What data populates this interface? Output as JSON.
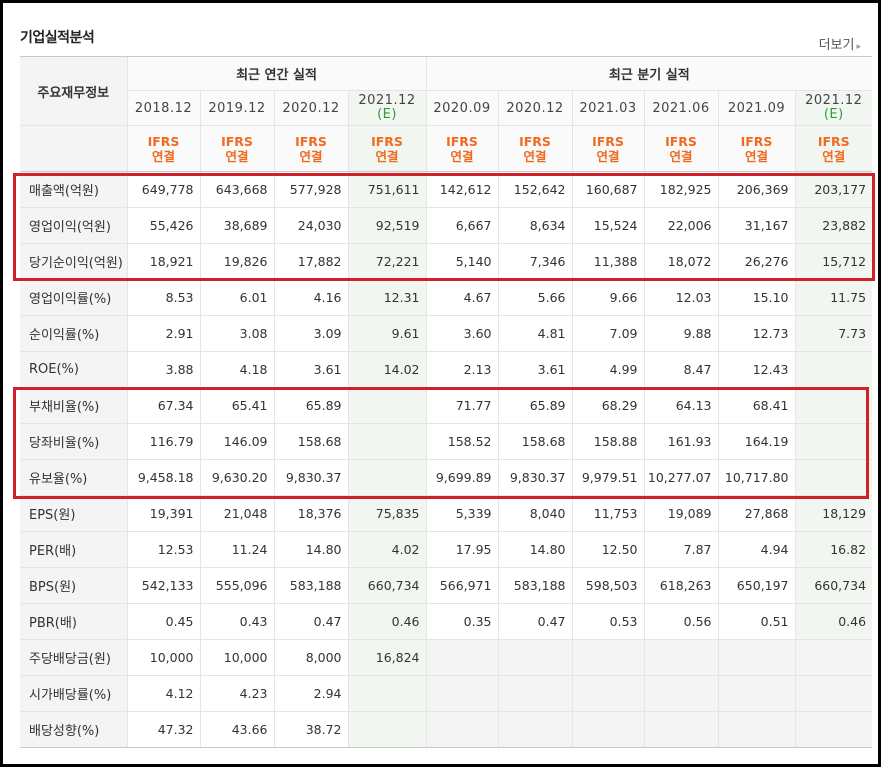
{
  "title": "기업실적분석",
  "more": {
    "label": "더보기",
    "arrow": "▸"
  },
  "header": {
    "label_column": "주요재무정보",
    "groups": {
      "annual": "최근 연간 실적",
      "quarterly": "최근 분기 실적"
    },
    "periods": [
      {
        "date": "2018.12",
        "est": ""
      },
      {
        "date": "2019.12",
        "est": ""
      },
      {
        "date": "2020.12",
        "est": ""
      },
      {
        "date": "2021.12",
        "est": "(E)"
      },
      {
        "date": "2020.09",
        "est": ""
      },
      {
        "date": "2020.12",
        "est": ""
      },
      {
        "date": "2021.03",
        "est": ""
      },
      {
        "date": "2021.06",
        "est": ""
      },
      {
        "date": "2021.09",
        "est": ""
      },
      {
        "date": "2021.12",
        "est": "(E)"
      }
    ],
    "basis_line1": "IFRS",
    "basis_line2": "연결"
  },
  "rows": [
    {
      "label": "매출액(억원)",
      "values": [
        "649,778",
        "643,668",
        "577,928",
        "751,611",
        "142,612",
        "152,642",
        "160,687",
        "182,925",
        "206,369",
        "203,177"
      ]
    },
    {
      "label": "영업이익(억원)",
      "values": [
        "55,426",
        "38,689",
        "24,030",
        "92,519",
        "6,667",
        "8,634",
        "15,524",
        "22,006",
        "31,167",
        "23,882"
      ]
    },
    {
      "label": "당기순이익(억원)",
      "values": [
        "18,921",
        "19,826",
        "17,882",
        "72,221",
        "5,140",
        "7,346",
        "11,388",
        "18,072",
        "26,276",
        "15,712"
      ]
    },
    {
      "label": "영업이익률(%)",
      "values": [
        "8.53",
        "6.01",
        "4.16",
        "12.31",
        "4.67",
        "5.66",
        "9.66",
        "12.03",
        "15.10",
        "11.75"
      ]
    },
    {
      "label": "순이익률(%)",
      "values": [
        "2.91",
        "3.08",
        "3.09",
        "9.61",
        "3.60",
        "4.81",
        "7.09",
        "9.88",
        "12.73",
        "7.73"
      ]
    },
    {
      "label": "ROE(%)",
      "values": [
        "3.88",
        "4.18",
        "3.61",
        "14.02",
        "2.13",
        "3.61",
        "4.99",
        "8.47",
        "12.43",
        ""
      ]
    },
    {
      "label": "부채비율(%)",
      "values": [
        "67.34",
        "65.41",
        "65.89",
        "",
        "71.77",
        "65.89",
        "68.29",
        "64.13",
        "68.41",
        ""
      ]
    },
    {
      "label": "당좌비율(%)",
      "values": [
        "116.79",
        "146.09",
        "158.68",
        "",
        "158.52",
        "158.68",
        "158.88",
        "161.93",
        "164.19",
        ""
      ]
    },
    {
      "label": "유보율(%)",
      "values": [
        "9,458.18",
        "9,630.20",
        "9,830.37",
        "",
        "9,699.89",
        "9,830.37",
        "9,979.51",
        "10,277.07",
        "10,717.80",
        ""
      ]
    },
    {
      "label": "EPS(원)",
      "values": [
        "19,391",
        "21,048",
        "18,376",
        "75,835",
        "5,339",
        "8,040",
        "11,753",
        "19,089",
        "27,868",
        "18,129"
      ]
    },
    {
      "label": "PER(배)",
      "values": [
        "12.53",
        "11.24",
        "14.80",
        "4.02",
        "17.95",
        "14.80",
        "12.50",
        "7.87",
        "4.94",
        "16.82"
      ]
    },
    {
      "label": "BPS(원)",
      "values": [
        "542,133",
        "555,096",
        "583,188",
        "660,734",
        "566,971",
        "583,188",
        "598,503",
        "618,263",
        "650,197",
        "660,734"
      ]
    },
    {
      "label": "PBR(배)",
      "values": [
        "0.45",
        "0.43",
        "0.47",
        "0.46",
        "0.35",
        "0.47",
        "0.53",
        "0.56",
        "0.51",
        "0.46"
      ]
    },
    {
      "label": "주당배당금(원)",
      "values": [
        "10,000",
        "10,000",
        "8,000",
        "16,824",
        "",
        "",
        "",
        "",
        "",
        ""
      ]
    },
    {
      "label": "시가배당률(%)",
      "values": [
        "4.12",
        "4.23",
        "2.94",
        "",
        "",
        "",
        "",
        "",
        "",
        ""
      ]
    },
    {
      "label": "배당성향(%)",
      "values": [
        "47.32",
        "43.66",
        "38.72",
        "",
        "",
        "",
        "",
        "",
        "",
        ""
      ]
    }
  ],
  "highlight_color": "#d0202a"
}
